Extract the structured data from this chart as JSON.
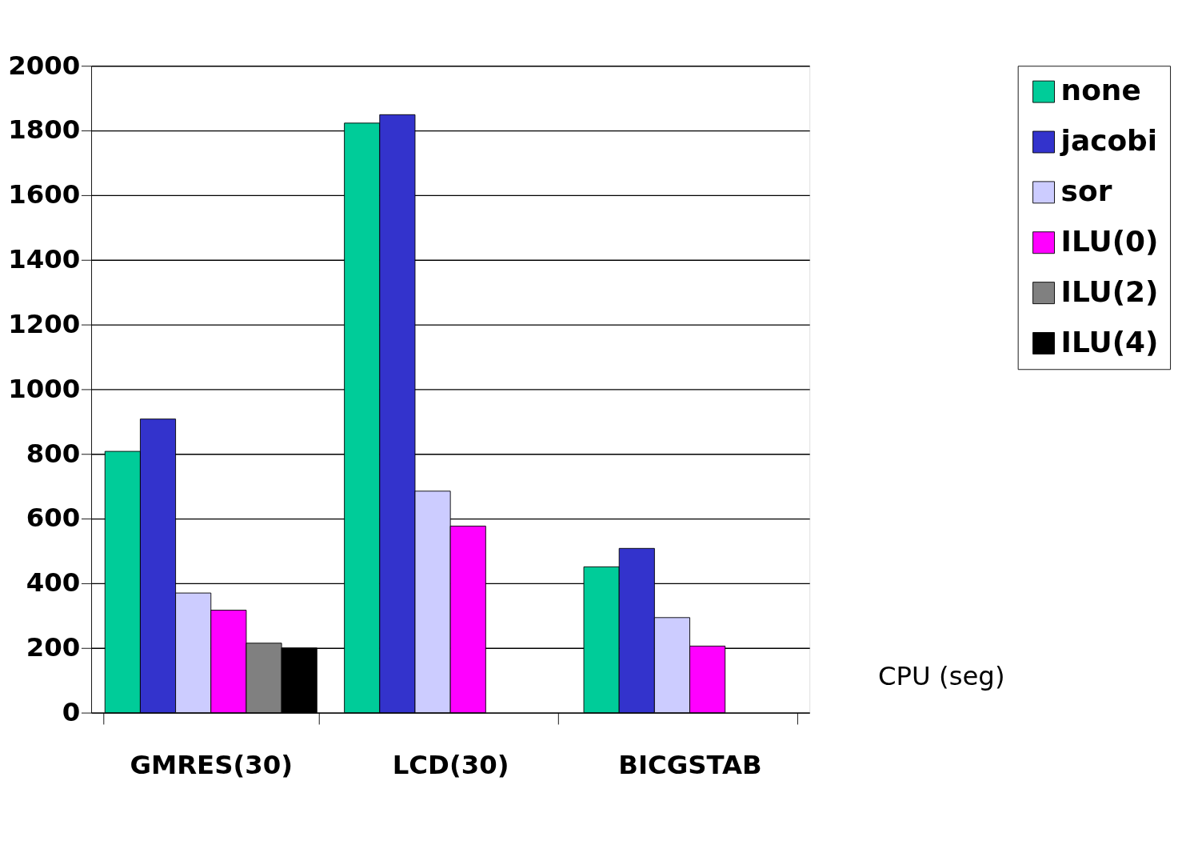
{
  "chart_data": {
    "type": "bar",
    "ylabel": "CPU (seg)",
    "categories": [
      "GMRES(30)",
      "LCD(30)",
      "BICGSTAB"
    ],
    "series": [
      {
        "name": "none",
        "color": "#00cc99",
        "values": [
          808,
          1823,
          451
        ]
      },
      {
        "name": "jacobi",
        "color": "#3333cc",
        "values": [
          908,
          1849,
          508
        ]
      },
      {
        "name": "sor",
        "color": "#ccccff",
        "values": [
          370,
          685,
          294
        ]
      },
      {
        "name": "ILU(0)",
        "color": "#ff00ff",
        "values": [
          317,
          577,
          206
        ]
      },
      {
        "name": "ILU(2)",
        "color": "#808080",
        "values": [
          215,
          null,
          null
        ]
      },
      {
        "name": "ILU(4)",
        "color": "#000000",
        "values": [
          200,
          null,
          null
        ]
      }
    ],
    "ylim": [
      0,
      2000
    ],
    "yticks": [
      0,
      200,
      400,
      600,
      800,
      1000,
      1200,
      1400,
      1600,
      1800,
      2000
    ],
    "grid": "y",
    "legend": "top right"
  }
}
